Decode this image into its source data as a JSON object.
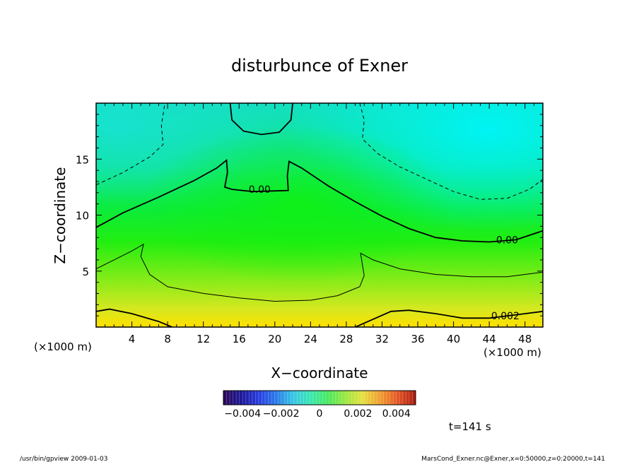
{
  "chart_data": {
    "type": "heatmap",
    "title": "disturbunce of Exner",
    "xlabel": "X−coordinate",
    "ylabel": "Z−coordinate",
    "x_unit": "(×1000 m)",
    "y_unit": "(×1000 m)",
    "xlim": [
      0,
      50
    ],
    "ylim": [
      0,
      20
    ],
    "x_ticks": [
      "4",
      "8",
      "12",
      "16",
      "20",
      "24",
      "28",
      "32",
      "36",
      "40",
      "44",
      "48"
    ],
    "x_tick_values": [
      4,
      8,
      12,
      16,
      20,
      24,
      28,
      32,
      36,
      40,
      44,
      48
    ],
    "y_ticks": [
      "5",
      "10",
      "15"
    ],
    "y_tick_values": [
      5,
      10,
      15
    ],
    "contour_labels": [
      {
        "text": "0.00",
        "x": 18.3,
        "z": 12.3
      },
      {
        "text": "0.00",
        "x": 46.0,
        "z": 7.8
      },
      {
        "text": "0.002",
        "x": 45.8,
        "z": 1.0
      }
    ],
    "contours": [
      {
        "level": "0.00",
        "style": "solid-thick",
        "points": [
          [
            15.0,
            20
          ],
          [
            15.2,
            18.5
          ],
          [
            16.5,
            17.5
          ],
          [
            18.5,
            17.2
          ],
          [
            20.5,
            17.4
          ],
          [
            21.8,
            18.5
          ],
          [
            22.0,
            20
          ]
        ]
      },
      {
        "level": "0.00",
        "style": "solid-thick",
        "points": [
          [
            0,
            8.9
          ],
          [
            3,
            10.2
          ],
          [
            7,
            11.6
          ],
          [
            11,
            13.1
          ],
          [
            13.5,
            14.2
          ],
          [
            14.6,
            14.9
          ],
          [
            14.7,
            13.8
          ],
          [
            14.4,
            12.5
          ],
          [
            15.2,
            12.3
          ],
          [
            17.5,
            12.1
          ],
          [
            21.5,
            12.2
          ],
          [
            21.4,
            13.5
          ],
          [
            21.6,
            14.8
          ],
          [
            23,
            14.2
          ],
          [
            26,
            12.6
          ],
          [
            29,
            11.2
          ],
          [
            32,
            9.9
          ],
          [
            35,
            8.8
          ],
          [
            38,
            8.0
          ],
          [
            41,
            7.7
          ],
          [
            44,
            7.6
          ],
          [
            47,
            7.8
          ],
          [
            50,
            8.6
          ]
        ]
      },
      {
        "level": "-0.001",
        "style": "dashed",
        "points": [
          [
            0,
            12.7
          ],
          [
            3,
            13.8
          ],
          [
            6,
            15.2
          ],
          [
            7.5,
            16.3
          ],
          [
            7.3,
            18.0
          ],
          [
            7.7,
            20
          ]
        ]
      },
      {
        "level": "-0.001",
        "style": "dashed",
        "points": [
          [
            29.5,
            20
          ],
          [
            30.0,
            18.5
          ],
          [
            29.8,
            16.8
          ],
          [
            31.5,
            15.5
          ],
          [
            34,
            14.3
          ],
          [
            37,
            13.2
          ],
          [
            40,
            12.1
          ],
          [
            43,
            11.4
          ],
          [
            46,
            11.5
          ],
          [
            48.5,
            12.3
          ],
          [
            50,
            13.2
          ]
        ]
      },
      {
        "level": "0.001",
        "style": "solid",
        "points": [
          [
            0,
            5.2
          ],
          [
            2,
            6.0
          ],
          [
            4,
            6.8
          ],
          [
            5.3,
            7.4
          ],
          [
            5.0,
            6.3
          ],
          [
            6.0,
            4.7
          ],
          [
            8,
            3.6
          ],
          [
            12,
            3.0
          ],
          [
            16,
            2.6
          ],
          [
            20,
            2.3
          ],
          [
            24,
            2.4
          ],
          [
            27,
            2.8
          ],
          [
            29.5,
            3.6
          ],
          [
            30.0,
            4.6
          ],
          [
            29.6,
            6.6
          ],
          [
            31,
            6.0
          ],
          [
            34,
            5.2
          ],
          [
            38,
            4.7
          ],
          [
            42,
            4.5
          ],
          [
            46,
            4.5
          ],
          [
            50,
            4.9
          ]
        ]
      },
      {
        "level": "0.002",
        "style": "solid-thick",
        "points": [
          [
            0,
            1.4
          ],
          [
            1.5,
            1.6
          ],
          [
            4,
            1.2
          ],
          [
            7,
            0.5
          ],
          [
            8.5,
            0
          ]
        ]
      },
      {
        "level": "0.002",
        "style": "solid-thick",
        "points": [
          [
            29,
            0
          ],
          [
            31,
            0.7
          ],
          [
            33,
            1.4
          ],
          [
            35,
            1.5
          ],
          [
            38,
            1.2
          ],
          [
            41,
            0.8
          ],
          [
            44,
            0.8
          ],
          [
            47,
            1.1
          ],
          [
            50,
            1.4
          ]
        ]
      }
    ],
    "colorbar": {
      "ticks": [
        "−0.004",
        "−0.002",
        "0",
        "0.002",
        "0.004"
      ],
      "tick_values": [
        -0.004,
        -0.002,
        0,
        0.002,
        0.004
      ],
      "range": [
        -0.005,
        0.005
      ],
      "colors": [
        "#2b0a5a",
        "#1d1a9c",
        "#2a3fe0",
        "#2a7de8",
        "#38c8e6",
        "#3ae8b0",
        "#4be860",
        "#9ae840",
        "#e6e040",
        "#f0a030",
        "#e65a28",
        "#b02010"
      ]
    },
    "field_colors": {
      "top_left": "#16e0c0",
      "top_right": "#00f0f0",
      "upper_mid": "#10e45a",
      "middle": "#12ee10",
      "lower": "#a6ec20",
      "bottom": "#ffe000"
    },
    "time_label": "t=141 s"
  },
  "footer": {
    "left": "/usr/bin/gpview   2009-01-03",
    "right": "MarsCond_Exner.nc@Exner,x=0:50000,z=0:20000,t=141"
  }
}
